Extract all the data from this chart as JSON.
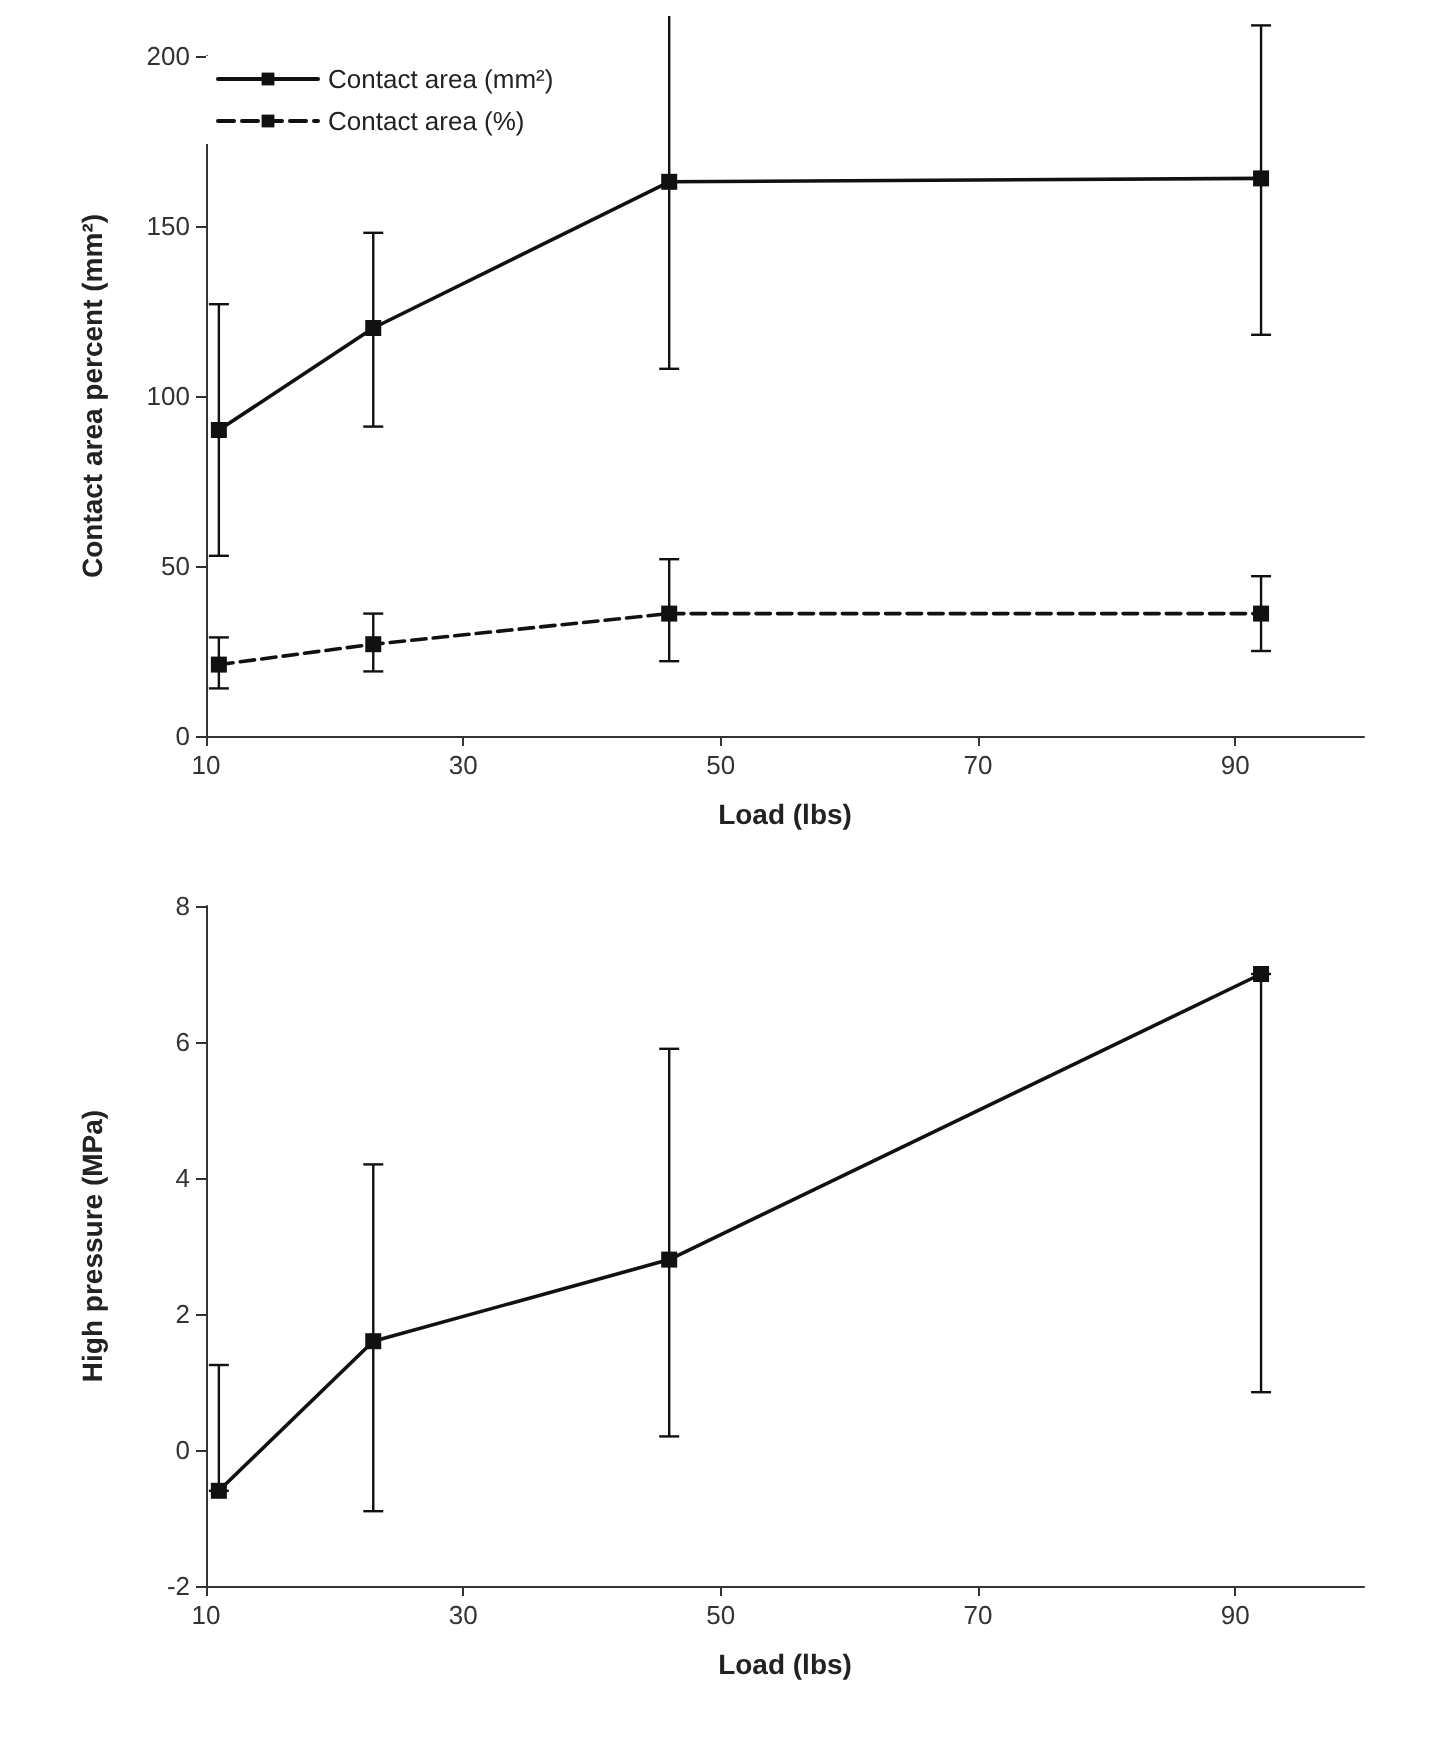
{
  "chart_data": [
    {
      "type": "line",
      "xlabel": "Load (lbs)",
      "ylabel": "Contact area percent (mm²)",
      "x": [
        11,
        23,
        46,
        92
      ],
      "xlim": [
        10,
        100
      ],
      "xticks": [
        10,
        30,
        50,
        70,
        90
      ],
      "ylim": [
        0,
        200
      ],
      "yticks": [
        0,
        50,
        100,
        150,
        200
      ],
      "grid": false,
      "legend": "top left",
      "marker": "square",
      "series": [
        {
          "name": "Contact area (mm²)",
          "color": "#111111",
          "line_style": "solid",
          "values": [
            90,
            120,
            163,
            164
          ],
          "errors": [
            [
              53,
              127
            ],
            [
              91,
              148
            ],
            [
              108,
              217
            ],
            [
              118,
              209
            ]
          ]
        },
        {
          "name": "Contact area (%)",
          "color": "#111111",
          "line_style": "dashed",
          "values": [
            21,
            27,
            36,
            36
          ],
          "errors": [
            [
              14,
              29
            ],
            [
              19,
              36
            ],
            [
              22,
              52
            ],
            [
              25,
              47
            ]
          ]
        }
      ]
    },
    {
      "type": "line",
      "xlabel": "Load (lbs)",
      "ylabel": "High pressure (MPa)",
      "x": [
        11,
        23,
        46,
        92
      ],
      "xlim": [
        10,
        100
      ],
      "xticks": [
        10,
        30,
        50,
        70,
        90
      ],
      "ylim": [
        -2,
        8
      ],
      "yticks": [
        -2,
        0,
        2,
        4,
        6,
        8
      ],
      "grid": false,
      "legend": false,
      "marker": "square",
      "series": [
        {
          "color": "#111111",
          "line_style": "solid",
          "values": [
            -0.6,
            1.6,
            2.8,
            7.0
          ],
          "errors": [
            [
              -0.6,
              1.25
            ],
            [
              -0.9,
              4.2
            ],
            [
              0.2,
              5.9
            ],
            [
              0.85,
              7.0
            ]
          ]
        }
      ]
    }
  ]
}
